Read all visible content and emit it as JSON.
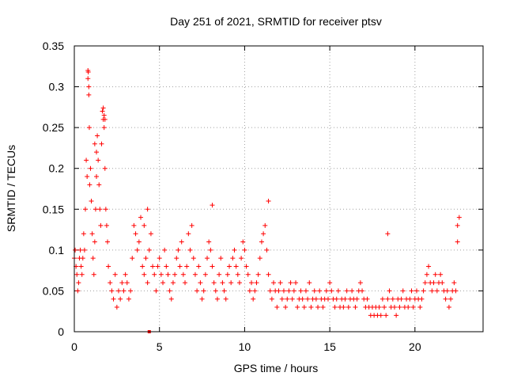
{
  "chart_data": {
    "type": "scatter",
    "title": "Day 251 of 2021, SRMTID for receiver ptsv",
    "xlabel": "GPS time / hours",
    "ylabel": "SRMTID / TECUs",
    "xlim": [
      0,
      24
    ],
    "ylim": [
      0,
      0.35
    ],
    "grid": true,
    "marker": "+",
    "color": "#ff0000",
    "xticks": [
      0,
      5,
      10,
      15,
      20
    ],
    "xtick_labels": [
      "0",
      "5",
      "10",
      "15",
      "20"
    ],
    "yticks": [
      0,
      0.05,
      0.1,
      0.15,
      0.2,
      0.25,
      0.3,
      0.35
    ],
    "ytick_labels": [
      "0",
      "0.05",
      "0.1",
      "0.15",
      "0.2",
      "0.25",
      "0.3",
      "0.35"
    ],
    "series": [
      {
        "name": "SRMTID",
        "x": [
          0.0,
          0.05,
          0.1,
          0.15,
          0.2,
          0.25,
          0.3,
          0.35,
          0.4,
          0.45,
          0.5,
          0.55,
          0.6,
          0.65,
          0.7,
          0.75,
          0.8,
          0.82,
          0.85,
          0.88,
          0.9,
          0.95,
          1.0,
          1.05,
          1.1,
          1.15,
          1.2,
          1.25,
          1.3,
          1.35,
          1.4,
          1.45,
          1.5,
          1.55,
          1.6,
          1.65,
          1.7,
          1.75,
          1.8,
          1.85,
          1.9,
          1.95,
          2.0,
          2.1,
          2.2,
          2.3,
          2.4,
          2.5,
          2.6,
          2.7,
          2.8,
          2.9,
          3.0,
          3.1,
          3.2,
          3.3,
          3.4,
          3.5,
          3.6,
          3.7,
          3.8,
          3.9,
          4.0,
          4.1,
          4.2,
          4.3,
          4.4,
          4.5,
          4.6,
          4.7,
          4.8,
          4.9,
          5.0,
          5.1,
          5.2,
          5.3,
          5.4,
          5.5,
          5.6,
          5.7,
          5.8,
          5.9,
          6.0,
          6.1,
          6.2,
          6.3,
          6.4,
          6.5,
          6.6,
          6.7,
          6.8,
          6.9,
          7.0,
          7.1,
          7.2,
          7.3,
          7.4,
          7.5,
          7.6,
          7.7,
          7.8,
          7.9,
          8.0,
          8.1,
          8.2,
          8.3,
          8.4,
          8.5,
          8.6,
          8.7,
          8.8,
          8.9,
          9.0,
          9.1,
          9.2,
          9.3,
          9.4,
          9.5,
          9.6,
          9.7,
          9.8,
          9.9,
          10.0,
          10.1,
          10.2,
          10.3,
          10.4,
          10.5,
          10.6,
          10.7,
          10.8,
          10.9,
          11.0,
          11.1,
          11.2,
          11.3,
          11.4,
          11.5,
          11.6,
          11.7,
          11.8,
          11.9,
          12.0,
          12.1,
          12.2,
          12.3,
          12.4,
          12.5,
          12.6,
          12.7,
          12.8,
          12.9,
          13.0,
          13.1,
          13.2,
          13.3,
          13.4,
          13.5,
          13.6,
          13.7,
          13.8,
          13.9,
          14.0,
          14.1,
          14.2,
          14.3,
          14.4,
          14.5,
          14.6,
          14.7,
          14.8,
          14.9,
          15.0,
          15.1,
          15.2,
          15.3,
          15.4,
          15.5,
          15.6,
          15.7,
          15.8,
          15.9,
          16.0,
          16.1,
          16.2,
          16.3,
          16.4,
          16.5,
          16.6,
          16.7,
          16.8,
          16.9,
          17.0,
          17.1,
          17.2,
          17.3,
          17.4,
          17.5,
          17.6,
          17.7,
          17.8,
          17.9,
          18.0,
          18.1,
          18.2,
          18.3,
          18.4,
          18.5,
          18.6,
          18.7,
          18.8,
          18.9,
          19.0,
          19.1,
          19.2,
          19.3,
          19.4,
          19.5,
          19.6,
          19.7,
          19.8,
          19.9,
          20.0,
          20.1,
          20.2,
          20.3,
          20.4,
          20.5,
          20.6,
          20.7,
          20.8,
          20.9,
          21.0,
          21.1,
          21.2,
          21.3,
          21.4,
          21.5,
          21.6,
          21.7,
          21.8,
          21.9,
          22.0,
          22.1,
          22.2,
          22.3,
          22.4,
          22.5,
          22.6,
          0.8,
          0.85,
          1.7,
          1.75,
          1.8,
          1.2,
          1.3,
          4.1,
          4.3,
          8.1,
          11.4,
          18.4,
          22.5
        ],
        "y": [
          0.09,
          0.1,
          0.08,
          0.07,
          0.05,
          0.06,
          0.09,
          0.1,
          0.08,
          0.07,
          0.09,
          0.12,
          0.1,
          0.15,
          0.21,
          0.19,
          0.32,
          0.318,
          0.29,
          0.25,
          0.18,
          0.2,
          0.16,
          0.12,
          0.09,
          0.07,
          0.11,
          0.15,
          0.22,
          0.24,
          0.21,
          0.18,
          0.15,
          0.13,
          0.23,
          0.27,
          0.26,
          0.25,
          0.2,
          0.15,
          0.13,
          0.11,
          0.08,
          0.06,
          0.05,
          0.04,
          0.07,
          0.03,
          0.05,
          0.04,
          0.06,
          0.05,
          0.07,
          0.06,
          0.04,
          0.05,
          0.09,
          0.13,
          0.12,
          0.1,
          0.11,
          0.14,
          0.08,
          0.07,
          0.09,
          0.06,
          0.1,
          0.12,
          0.08,
          0.07,
          0.05,
          0.08,
          0.09,
          0.07,
          0.06,
          0.1,
          0.08,
          0.07,
          0.05,
          0.04,
          0.06,
          0.07,
          0.09,
          0.1,
          0.08,
          0.11,
          0.07,
          0.06,
          0.08,
          0.12,
          0.1,
          0.13,
          0.09,
          0.07,
          0.05,
          0.08,
          0.06,
          0.04,
          0.05,
          0.07,
          0.09,
          0.11,
          0.1,
          0.08,
          0.06,
          0.05,
          0.04,
          0.07,
          0.09,
          0.06,
          0.05,
          0.04,
          0.07,
          0.08,
          0.06,
          0.09,
          0.1,
          0.08,
          0.07,
          0.06,
          0.09,
          0.11,
          0.1,
          0.08,
          0.07,
          0.05,
          0.06,
          0.04,
          0.05,
          0.06,
          0.07,
          0.09,
          0.11,
          0.12,
          0.13,
          0.1,
          0.07,
          0.05,
          0.04,
          0.06,
          0.05,
          0.03,
          0.05,
          0.06,
          0.04,
          0.05,
          0.03,
          0.04,
          0.05,
          0.06,
          0.04,
          0.05,
          0.06,
          0.03,
          0.04,
          0.05,
          0.04,
          0.03,
          0.05,
          0.04,
          0.06,
          0.03,
          0.04,
          0.05,
          0.04,
          0.03,
          0.05,
          0.04,
          0.03,
          0.04,
          0.05,
          0.04,
          0.06,
          0.05,
          0.04,
          0.03,
          0.04,
          0.05,
          0.03,
          0.04,
          0.03,
          0.04,
          0.05,
          0.03,
          0.04,
          0.05,
          0.04,
          0.03,
          0.04,
          0.05,
          0.06,
          0.05,
          0.04,
          0.03,
          0.04,
          0.03,
          0.02,
          0.03,
          0.02,
          0.03,
          0.02,
          0.03,
          0.02,
          0.04,
          0.03,
          0.02,
          0.04,
          0.05,
          0.03,
          0.04,
          0.03,
          0.02,
          0.04,
          0.03,
          0.04,
          0.05,
          0.03,
          0.04,
          0.03,
          0.04,
          0.05,
          0.03,
          0.04,
          0.05,
          0.04,
          0.03,
          0.04,
          0.05,
          0.06,
          0.07,
          0.08,
          0.06,
          0.05,
          0.06,
          0.07,
          0.05,
          0.06,
          0.07,
          0.06,
          0.05,
          0.04,
          0.05,
          0.03,
          0.04,
          0.05,
          0.06,
          0.05,
          0.13,
          0.14,
          0.31,
          0.3,
          0.274,
          0.265,
          0.26,
          0.23,
          0.19,
          0.13,
          0.15,
          0.155,
          0.16,
          0.12,
          0.11
        ],
        "highlight_points": [
          {
            "x": 4.4,
            "y": 0.0
          }
        ]
      }
    ]
  }
}
